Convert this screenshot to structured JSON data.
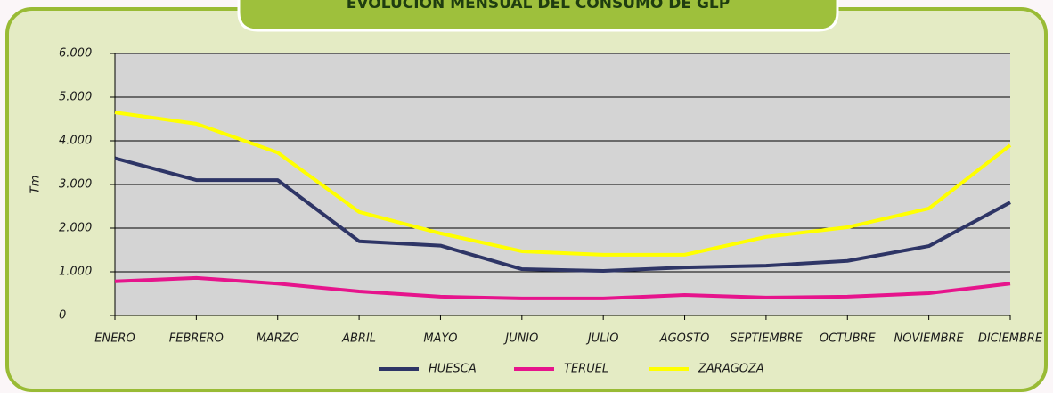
{
  "chart_data": {
    "type": "line",
    "title": "EVOLUCIÓN MENSUAL DEL CONSUMO DE GLP",
    "y_label": "Tm",
    "categories": [
      "ENERO",
      "FEBRERO",
      "MARZO",
      "ABRIL",
      "MAYO",
      "JUNIO",
      "JULIO",
      "AGOSTO",
      "SEPTIEMBRE",
      "OCTUBRE",
      "NOVIEMBRE",
      "DICIEMBRE"
    ],
    "series": [
      {
        "name": "HUESCA",
        "color": "#2e3566",
        "values": [
          3600,
          3100,
          3100,
          1700,
          1600,
          1060,
          1020,
          1100,
          1140,
          1250,
          1590,
          2590
        ]
      },
      {
        "name": "TERUEL",
        "color": "#e6148c",
        "values": [
          780,
          860,
          730,
          550,
          430,
          390,
          390,
          470,
          410,
          430,
          510,
          730
        ]
      },
      {
        "name": "ZARAGOZA",
        "color": "#ffff00",
        "values": [
          4650,
          4390,
          3730,
          2370,
          1880,
          1470,
          1390,
          1390,
          1800,
          2020,
          2450,
          3900
        ]
      }
    ],
    "ylim": [
      0,
      6000
    ],
    "yticks": [
      0,
      {
        "value": 1000,
        "label": "1.000"
      },
      {
        "value": 2000,
        "label": "2.000"
      },
      {
        "value": 3000,
        "label": "3.000"
      },
      {
        "value": 4000,
        "label": "4.000"
      },
      {
        "value": 5000,
        "label": "5.000"
      },
      {
        "value": 6000,
        "label": "6.000"
      }
    ],
    "grid": true,
    "legend": "bottom"
  }
}
